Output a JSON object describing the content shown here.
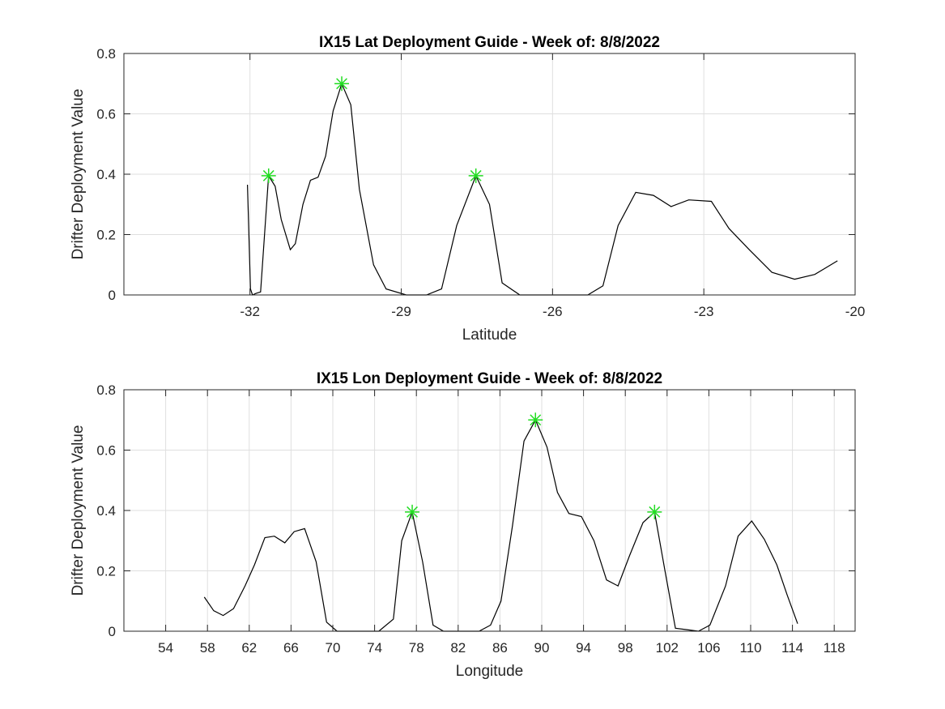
{
  "chart_data": [
    {
      "type": "line",
      "title": "IX15 Lat Deployment Guide - Week of: 8/8/2022",
      "xlabel": "Latitude",
      "ylabel": "Drifter Deployment Value",
      "xlim": [
        -34.5,
        -20
      ],
      "ylim": [
        0,
        0.8
      ],
      "xticks": [
        -32,
        -29,
        -26,
        -23,
        -20
      ],
      "xtick_labels": [
        "-32",
        "-29",
        "-26",
        "-23",
        "-20"
      ],
      "yticks": [
        0,
        0.2,
        0.4,
        0.6,
        0.8
      ],
      "ytick_labels": [
        "0",
        "0.2",
        "0.4",
        "0.6",
        "0.8"
      ],
      "grid": true,
      "line_color": "#000000",
      "marker_color": "#22dd22",
      "series": [
        {
          "x": [
            -32.05,
            -31.99,
            -31.95,
            -31.88,
            -31.79,
            -31.63,
            -31.5,
            -31.38,
            -31.2,
            -31.1,
            -30.95,
            -30.8,
            -30.65,
            -30.5,
            -30.35,
            -30.18,
            -30.0,
            -29.83,
            -29.55,
            -29.3,
            -28.9,
            -28.5,
            -28.2,
            -27.9,
            -27.52,
            -27.25,
            -27.0,
            -26.65,
            -26.3,
            -25.9,
            -25.6,
            -25.3,
            -25.0,
            -24.7,
            -24.35,
            -24.0,
            -23.65,
            -23.3,
            -22.85,
            -22.5,
            -22.1,
            -21.65,
            -21.2,
            -20.8,
            -20.35
          ],
          "y": [
            0.365,
            0.02,
            0.0,
            0.005,
            0.01,
            0.395,
            0.36,
            0.25,
            0.15,
            0.17,
            0.3,
            0.38,
            0.39,
            0.46,
            0.61,
            0.7,
            0.63,
            0.35,
            0.1,
            0.02,
            0.0,
            0.0,
            0.02,
            0.23,
            0.395,
            0.3,
            0.04,
            0.0,
            0.0,
            0.0,
            0.0,
            0.0,
            0.03,
            0.23,
            0.34,
            0.33,
            0.293,
            0.315,
            0.31,
            0.22,
            0.15,
            0.075,
            0.052,
            0.068,
            0.113
          ]
        }
      ],
      "peaks": {
        "x": [
          -31.63,
          -30.18,
          -27.52
        ],
        "y": [
          0.395,
          0.7,
          0.395
        ]
      }
    },
    {
      "type": "line",
      "title": "IX15 Lon Deployment Guide - Week of: 8/8/2022",
      "xlabel": "Longitude",
      "ylabel": "Drifter Deployment Value",
      "xlim": [
        50,
        120
      ],
      "ylim": [
        0,
        0.8
      ],
      "xticks": [
        54,
        58,
        62,
        66,
        70,
        74,
        78,
        82,
        86,
        90,
        94,
        98,
        102,
        106,
        110,
        114,
        118
      ],
      "xtick_labels": [
        "54",
        "58",
        "62",
        "66",
        "70",
        "74",
        "78",
        "82",
        "86",
        "90",
        "94",
        "98",
        "102",
        "106",
        "110",
        "114",
        "118"
      ],
      "yticks": [
        0,
        0.2,
        0.4,
        0.6,
        0.8
      ],
      "ytick_labels": [
        "0",
        "0.2",
        "0.4",
        "0.6",
        "0.8"
      ],
      "grid": true,
      "line_color": "#000000",
      "marker_color": "#22dd22",
      "series": [
        {
          "x": [
            57.7,
            58.6,
            59.5,
            60.5,
            61.6,
            62.5,
            63.5,
            64.4,
            65.4,
            66.3,
            67.3,
            68.4,
            69.4,
            70.4,
            72.5,
            74.4,
            75.8,
            76.6,
            77.6,
            78.6,
            79.6,
            80.6,
            82.0,
            84.0,
            85.1,
            86.1,
            87.2,
            88.3,
            89.4,
            90.5,
            91.5,
            92.6,
            93.8,
            95.0,
            96.2,
            97.3,
            98.4,
            99.7,
            100.8,
            101.8,
            102.8,
            103.9,
            105.0,
            106.1,
            107.6,
            108.8,
            110.1,
            111.3,
            112.5,
            113.5,
            114.5
          ],
          "y": [
            0.113,
            0.068,
            0.052,
            0.075,
            0.15,
            0.22,
            0.31,
            0.315,
            0.293,
            0.33,
            0.34,
            0.23,
            0.03,
            0.0,
            0.0,
            0.0,
            0.04,
            0.3,
            0.395,
            0.23,
            0.02,
            0.0,
            0.0,
            0.0,
            0.02,
            0.1,
            0.35,
            0.63,
            0.7,
            0.61,
            0.46,
            0.39,
            0.38,
            0.3,
            0.17,
            0.15,
            0.25,
            0.36,
            0.395,
            0.2,
            0.01,
            0.005,
            0.0,
            0.02,
            0.15,
            0.315,
            0.365,
            0.305,
            0.22,
            0.12,
            0.025
          ]
        }
      ],
      "peaks": {
        "x": [
          77.6,
          89.4,
          100.8
        ],
        "y": [
          0.395,
          0.7,
          0.395
        ]
      }
    }
  ]
}
